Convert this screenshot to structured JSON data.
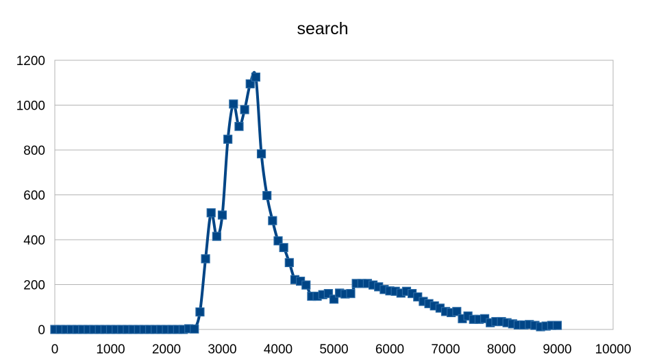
{
  "chart_data": {
    "type": "line",
    "title": "search",
    "xlabel": "",
    "ylabel": "",
    "xlim": [
      0,
      10000
    ],
    "ylim": [
      0,
      1200
    ],
    "x_ticks": [
      0,
      1000,
      2000,
      3000,
      4000,
      5000,
      6000,
      7000,
      8000,
      9000,
      10000
    ],
    "y_ticks": [
      0,
      200,
      400,
      600,
      800,
      1000,
      1200
    ],
    "grid": "horizontal",
    "legend": "none",
    "smooth": true,
    "marker": "square",
    "color": "#004586",
    "series": [
      {
        "points": [
          [
            0,
            0
          ],
          [
            100,
            0
          ],
          [
            200,
            0
          ],
          [
            300,
            0
          ],
          [
            400,
            0
          ],
          [
            500,
            0
          ],
          [
            600,
            0
          ],
          [
            700,
            0
          ],
          [
            800,
            0
          ],
          [
            900,
            0
          ],
          [
            1000,
            0
          ],
          [
            1100,
            0
          ],
          [
            1200,
            0
          ],
          [
            1300,
            0
          ],
          [
            1400,
            0
          ],
          [
            1500,
            0
          ],
          [
            1600,
            0
          ],
          [
            1700,
            0
          ],
          [
            1800,
            0
          ],
          [
            1900,
            0
          ],
          [
            2000,
            0
          ],
          [
            2100,
            0
          ],
          [
            2200,
            0
          ],
          [
            2300,
            0
          ],
          [
            2400,
            3
          ],
          [
            2500,
            2
          ],
          [
            2600,
            78
          ],
          [
            2700,
            315
          ],
          [
            2800,
            520
          ],
          [
            2900,
            415
          ],
          [
            3000,
            510
          ],
          [
            3100,
            848
          ],
          [
            3200,
            1005
          ],
          [
            3300,
            905
          ],
          [
            3400,
            980
          ],
          [
            3500,
            1095
          ],
          [
            3600,
            1125
          ],
          [
            3700,
            783
          ],
          [
            3800,
            597
          ],
          [
            3900,
            485
          ],
          [
            4000,
            395
          ],
          [
            4100,
            365
          ],
          [
            4200,
            298
          ],
          [
            4300,
            222
          ],
          [
            4400,
            215
          ],
          [
            4500,
            198
          ],
          [
            4600,
            148
          ],
          [
            4700,
            148
          ],
          [
            4800,
            155
          ],
          [
            4900,
            160
          ],
          [
            5000,
            135
          ],
          [
            5100,
            162
          ],
          [
            5200,
            158
          ],
          [
            5300,
            160
          ],
          [
            5400,
            205
          ],
          [
            5500,
            205
          ],
          [
            5600,
            205
          ],
          [
            5700,
            198
          ],
          [
            5800,
            190
          ],
          [
            5900,
            178
          ],
          [
            6000,
            172
          ],
          [
            6100,
            170
          ],
          [
            6200,
            162
          ],
          [
            6300,
            170
          ],
          [
            6400,
            160
          ],
          [
            6500,
            145
          ],
          [
            6600,
            125
          ],
          [
            6700,
            115
          ],
          [
            6800,
            105
          ],
          [
            6900,
            95
          ],
          [
            7000,
            80
          ],
          [
            7100,
            75
          ],
          [
            7200,
            80
          ],
          [
            7300,
            48
          ],
          [
            7400,
            60
          ],
          [
            7500,
            45
          ],
          [
            7600,
            45
          ],
          [
            7700,
            48
          ],
          [
            7800,
            30
          ],
          [
            7900,
            35
          ],
          [
            8000,
            35
          ],
          [
            8100,
            30
          ],
          [
            8200,
            25
          ],
          [
            8300,
            20
          ],
          [
            8400,
            20
          ],
          [
            8500,
            22
          ],
          [
            8600,
            18
          ],
          [
            8700,
            12
          ],
          [
            8800,
            15
          ],
          [
            8900,
            18
          ],
          [
            9000,
            18
          ]
        ]
      }
    ]
  }
}
